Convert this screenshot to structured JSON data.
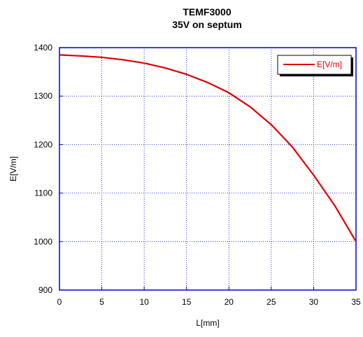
{
  "chart_data": {
    "type": "line",
    "title": "TEMF3000",
    "subtitle": "35V on septum",
    "xlabel": "L[mm]",
    "ylabel": "E[V/m]",
    "xlim": [
      0,
      35
    ],
    "ylim": [
      900,
      1400
    ],
    "x_ticks": [
      "0",
      "5",
      "10",
      "15",
      "20",
      "25",
      "30",
      "35"
    ],
    "y_ticks": [
      "900",
      "1000",
      "1100",
      "1200",
      "1300",
      "1400"
    ],
    "grid": true,
    "legend_position": "top-right",
    "series": [
      {
        "name": "E[V/m]",
        "color": "#dd0000",
        "x": [
          0,
          2.5,
          5,
          7.5,
          10,
          12.5,
          15,
          17.5,
          20,
          22.5,
          25,
          27.5,
          30,
          32.5,
          35
        ],
        "y": [
          1385,
          1383,
          1380,
          1375,
          1368,
          1358,
          1345,
          1328,
          1307,
          1278,
          1241,
          1195,
          1137,
          1074,
          1000
        ]
      }
    ]
  }
}
